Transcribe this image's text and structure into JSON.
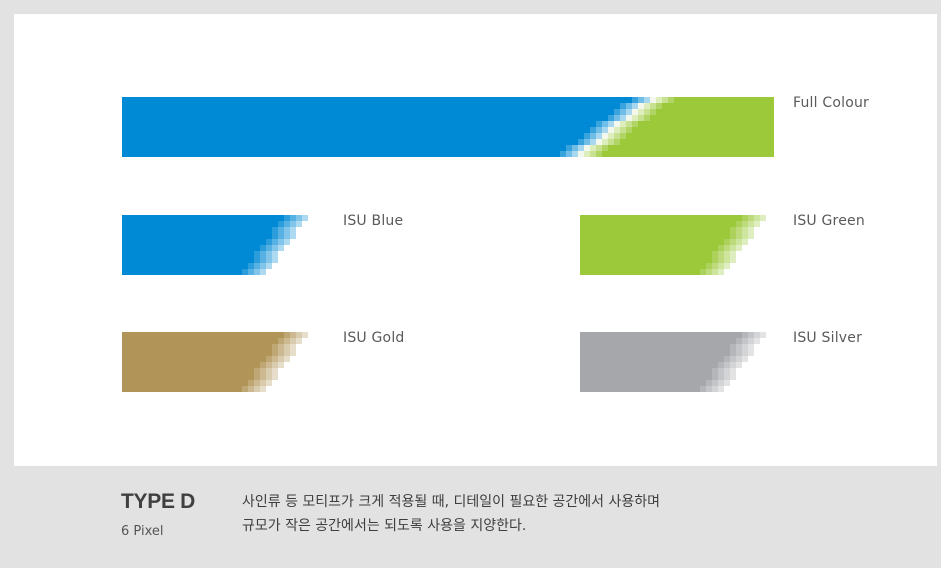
{
  "colors": {
    "blue": "#0089d4",
    "green": "#9bc93a",
    "gold": "#b19558",
    "silver": "#a6a7ab"
  },
  "swatches": {
    "full": {
      "label": "Full Colour"
    },
    "blue": {
      "label": "ISU Blue"
    },
    "green": {
      "label": "ISU Green"
    },
    "gold": {
      "label": "ISU Gold"
    },
    "silver": {
      "label": "ISU Silver"
    }
  },
  "footer": {
    "title": "TYPE D",
    "subtitle": "6 Pixel",
    "description": [
      "사인류 등 모티프가 크게 적용될 때, 디테일이 필요한 공간에서 사용하며",
      "규모가 작은 공간에서는 되도록 사용을 지양한다."
    ]
  }
}
